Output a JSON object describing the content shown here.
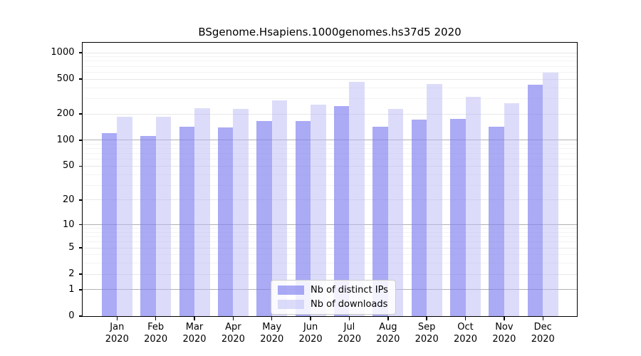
{
  "chart_data": {
    "type": "bar",
    "title": "BSgenome.Hsapiens.1000genomes.hs37d5 2020",
    "categories": [
      "Jan",
      "Feb",
      "Mar",
      "Apr",
      "May",
      "Jun",
      "Jul",
      "Aug",
      "Sep",
      "Oct",
      "Nov",
      "Dec"
    ],
    "year_label": "2020",
    "series": [
      {
        "name": "Nb of distinct IPs",
        "color": "rgba(124,124,240,0.65)",
        "values": [
          121,
          112,
          143,
          140,
          166,
          166,
          244,
          144,
          171,
          176,
          143,
          429
        ]
      },
      {
        "name": "Nb of downloads",
        "color": "rgba(185,185,245,0.5)",
        "values": [
          186,
          185,
          234,
          227,
          287,
          257,
          462,
          228,
          442,
          315,
          265,
          596
        ]
      }
    ],
    "yscale": "log10(value+1), 0 at baseline",
    "yticks": [
      0,
      1,
      2,
      5,
      10,
      20,
      50,
      100,
      200,
      500,
      1000
    ],
    "ylim": [
      0,
      1300
    ],
    "xlabel": "",
    "ylabel": "",
    "grid": true,
    "legend_position": "bottom-center"
  }
}
